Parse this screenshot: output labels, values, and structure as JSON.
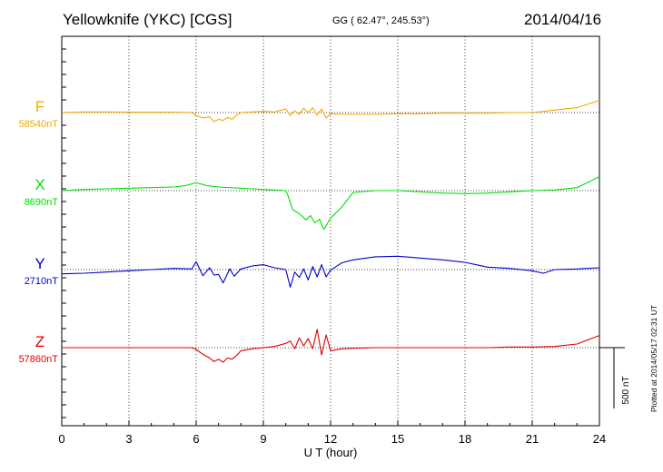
{
  "header": {
    "station": "Yellowknife (YKC)  [CGS]",
    "coords": "GG ( 62.47°, 245.53°)",
    "date": "2014/04/16"
  },
  "side_note": "Plotted at 2014/05/17 02:31  UT",
  "colors": {
    "F": "#f5a800",
    "X": "#00e000",
    "Y": "#0000cc",
    "Z": "#e00000",
    "frame": "#000000",
    "grid": "#000000"
  },
  "chart_data": {
    "type": "line",
    "title": "Yellowknife (YKC)  [CGS]",
    "xlabel": "U T (hour)",
    "xlim": [
      0,
      24
    ],
    "x_ticks": [
      0,
      3,
      6,
      9,
      12,
      15,
      18,
      21,
      24
    ],
    "x_tick_labels": [
      "0",
      "3",
      "6",
      "9",
      "12",
      "15",
      "18",
      "21",
      "24"
    ],
    "grid": true,
    "grid_style": "dotted vertical lines every 3 hours",
    "units": "nT",
    "scale_bar": {
      "label": "500 nT",
      "value_nT": 500
    },
    "y_range_nT": [
      -1050,
      1050
    ],
    "series": [
      {
        "name": "F",
        "baseline_label": "58540nT",
        "baseline_nT": 58540,
        "x": [
          0,
          1,
          2,
          3,
          4,
          5,
          5.8,
          6,
          6.3,
          6.6,
          6.8,
          7.0,
          7.2,
          7.4,
          7.6,
          7.8,
          8.0,
          8.5,
          9.0,
          9.5,
          10.0,
          10.2,
          10.4,
          10.6,
          10.8,
          11.0,
          11.2,
          11.4,
          11.6,
          11.8,
          12.0,
          12.5,
          13,
          14,
          15,
          16,
          17,
          18,
          19,
          20,
          21,
          22,
          23,
          24
        ],
        "values": [
          0,
          5,
          5,
          3,
          3,
          3,
          0,
          -25,
          -45,
          -35,
          -75,
          -55,
          -65,
          -40,
          -55,
          -20,
          0,
          5,
          10,
          5,
          30,
          -25,
          15,
          -15,
          35,
          0,
          40,
          -20,
          30,
          -45,
          -10,
          -15,
          -15,
          -15,
          -10,
          -10,
          -5,
          -5,
          -5,
          0,
          0,
          20,
          40,
          100
        ]
      },
      {
        "name": "X",
        "baseline_label": "8690nT",
        "baseline_nT": 8690,
        "x": [
          0,
          1,
          2,
          3,
          4,
          5,
          5.5,
          6,
          6.5,
          7,
          7.5,
          8,
          8.5,
          9,
          9.5,
          10,
          10.1,
          10.3,
          10.6,
          10.9,
          11.1,
          11.3,
          11.5,
          11.7,
          12.0,
          12.5,
          13,
          14,
          15,
          16,
          17,
          18,
          19,
          20,
          20.5,
          21,
          22,
          23,
          24
        ],
        "values": [
          0,
          10,
          15,
          20,
          25,
          30,
          40,
          65,
          40,
          30,
          25,
          20,
          15,
          10,
          5,
          0,
          -40,
          -155,
          -190,
          -240,
          -205,
          -265,
          -235,
          -320,
          -225,
          -135,
          -15,
          0,
          0,
          -10,
          -20,
          -25,
          -20,
          -10,
          -5,
          0,
          5,
          25,
          115
        ]
      },
      {
        "name": "Y",
        "baseline_label": "2710nT",
        "baseline_nT": 2710,
        "x": [
          0,
          1,
          2,
          3,
          4,
          5,
          5.8,
          6,
          6.3,
          6.6,
          6.8,
          7.0,
          7.2,
          7.5,
          7.7,
          8.0,
          8.5,
          9,
          9.5,
          10,
          10.2,
          10.4,
          10.6,
          10.8,
          11.0,
          11.2,
          11.4,
          11.6,
          11.8,
          12.0,
          12.5,
          13,
          14,
          15,
          16,
          17,
          18,
          19,
          20,
          21,
          21.5,
          22,
          23,
          24
        ],
        "values": [
          -35,
          -30,
          -20,
          -10,
          0,
          10,
          5,
          65,
          -50,
          15,
          -45,
          -40,
          -110,
          5,
          -55,
          5,
          30,
          40,
          15,
          0,
          -145,
          -20,
          -65,
          5,
          -85,
          25,
          -60,
          40,
          -60,
          -5,
          55,
          80,
          105,
          110,
          95,
          80,
          60,
          20,
          10,
          -10,
          -30,
          0,
          5,
          15
        ]
      },
      {
        "name": "Z",
        "baseline_label": "57860nT",
        "baseline_nT": 57860,
        "x": [
          0,
          1,
          2,
          3,
          4,
          5,
          5.8,
          6,
          6.3,
          6.6,
          6.8,
          7.0,
          7.2,
          7.4,
          7.6,
          7.8,
          8.0,
          8.5,
          9,
          9.5,
          10.0,
          10.2,
          10.4,
          10.6,
          10.8,
          11.0,
          11.2,
          11.4,
          11.6,
          11.8,
          12.0,
          12.5,
          13,
          14,
          15,
          16,
          17,
          18,
          19,
          20,
          21,
          22,
          23,
          24
        ],
        "values": [
          0,
          0,
          0,
          0,
          0,
          0,
          0,
          -15,
          -55,
          -85,
          -115,
          -95,
          -120,
          -85,
          -95,
          -65,
          -25,
          -10,
          0,
          10,
          35,
          55,
          -10,
          80,
          15,
          75,
          -10,
          150,
          -60,
          105,
          -25,
          -10,
          -5,
          0,
          0,
          0,
          0,
          0,
          0,
          5,
          5,
          10,
          30,
          100
        ]
      }
    ]
  }
}
